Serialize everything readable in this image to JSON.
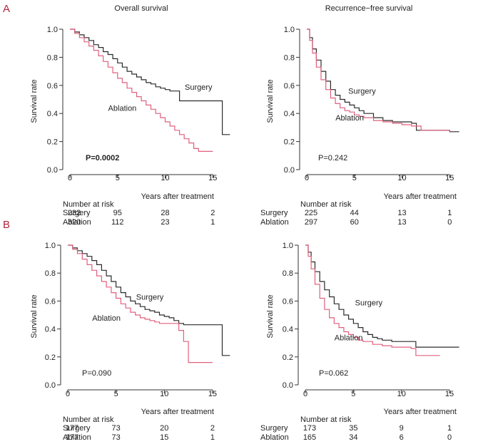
{
  "figure": {
    "panel_labels": [
      "A",
      "B"
    ],
    "colors": {
      "surgery": "#2b2b2b",
      "ablation": "#e0607e",
      "panel_label": "#b0243a",
      "axis": "#333333"
    }
  },
  "chart_data": [
    {
      "type": "line",
      "panel": "A",
      "title": "Overall survival",
      "ylabel": "Survival rate",
      "xlabel": "Years after treatment",
      "xlim": [
        0,
        17
      ],
      "ylim": [
        0,
        1.0
      ],
      "xticks": [
        0,
        5,
        10,
        15
      ],
      "yticks": [
        0.0,
        0.2,
        0.4,
        0.6,
        0.8,
        1.0
      ],
      "p_value": "P=0.0002",
      "p_bold": true,
      "series": [
        {
          "name": "Surgery",
          "label_at": [
            13.5,
            0.59
          ],
          "x": [
            0,
            0.5,
            1,
            1.5,
            2,
            2.5,
            3,
            3.5,
            4,
            4.5,
            5,
            5.5,
            6,
            6.5,
            7,
            7.5,
            8,
            8.5,
            9,
            9.5,
            10,
            10.5,
            11,
            11.5,
            12,
            13,
            14,
            15,
            16,
            16.8
          ],
          "y": [
            1.0,
            0.98,
            0.96,
            0.94,
            0.92,
            0.89,
            0.87,
            0.84,
            0.82,
            0.79,
            0.76,
            0.73,
            0.7,
            0.68,
            0.66,
            0.64,
            0.62,
            0.61,
            0.59,
            0.58,
            0.57,
            0.56,
            0.56,
            0.49,
            0.49,
            0.49,
            0.49,
            0.49,
            0.25,
            0.25
          ]
        },
        {
          "name": "Ablation",
          "label_at": [
            5.5,
            0.44
          ],
          "x": [
            0,
            0.5,
            1,
            1.5,
            2,
            2.5,
            3,
            3.5,
            4,
            4.5,
            5,
            5.5,
            6,
            6.5,
            7,
            7.5,
            8,
            8.5,
            9,
            9.5,
            10,
            10.5,
            11,
            11.5,
            12,
            12.5,
            13,
            13.5,
            14,
            15
          ],
          "y": [
            1.0,
            0.97,
            0.94,
            0.91,
            0.88,
            0.85,
            0.81,
            0.77,
            0.73,
            0.69,
            0.65,
            0.62,
            0.58,
            0.55,
            0.52,
            0.49,
            0.46,
            0.43,
            0.4,
            0.37,
            0.34,
            0.31,
            0.28,
            0.25,
            0.22,
            0.19,
            0.15,
            0.13,
            0.13,
            0.13
          ]
        }
      ],
      "risk_table": {
        "header": "Number at risk",
        "times": [
          0,
          5,
          10,
          15
        ],
        "rows": [
          {
            "label": "Surgery",
            "values": [
              "232",
              "95",
              "28",
              "2"
            ]
          },
          {
            "label": "Ablation",
            "values": [
              "320",
              "112",
              "23",
              "1"
            ]
          }
        ]
      }
    },
    {
      "type": "line",
      "panel": "A",
      "title": "Recurrence−free survival",
      "ylabel": "Survival rate",
      "xlabel": "Years after treatment",
      "xlim": [
        0,
        17
      ],
      "ylim": [
        0,
        1.0
      ],
      "xticks": [
        0,
        5,
        10,
        15
      ],
      "yticks": [
        0.0,
        0.2,
        0.4,
        0.6,
        0.8,
        1.0
      ],
      "p_value": "P=0.242",
      "p_bold": false,
      "series": [
        {
          "name": "Surgery",
          "label_at": [
            5.8,
            0.56
          ],
          "x": [
            0,
            0.3,
            0.6,
            1,
            1.5,
            2,
            2.5,
            3,
            3.5,
            4,
            4.5,
            5,
            5.5,
            6,
            7,
            8,
            9,
            10,
            11,
            11.5,
            12,
            13,
            14,
            15,
            16
          ],
          "y": [
            1.0,
            0.94,
            0.86,
            0.78,
            0.7,
            0.63,
            0.57,
            0.53,
            0.5,
            0.48,
            0.46,
            0.44,
            0.42,
            0.4,
            0.37,
            0.35,
            0.34,
            0.34,
            0.33,
            0.28,
            0.28,
            0.28,
            0.28,
            0.27,
            0.27
          ]
        },
        {
          "name": "Ablation",
          "label_at": [
            4.5,
            0.37
          ],
          "x": [
            0,
            0.3,
            0.6,
            1,
            1.5,
            2,
            2.5,
            3,
            3.5,
            4,
            4.5,
            5,
            5.5,
            6,
            7,
            8,
            9,
            10,
            11,
            12,
            13,
            14,
            15
          ],
          "y": [
            1.0,
            0.92,
            0.83,
            0.73,
            0.64,
            0.57,
            0.51,
            0.47,
            0.44,
            0.42,
            0.41,
            0.39,
            0.38,
            0.37,
            0.35,
            0.34,
            0.33,
            0.32,
            0.31,
            0.28,
            0.28,
            0.28,
            0.27
          ]
        }
      ],
      "risk_table": {
        "header": "Number at risk",
        "times": [
          0,
          5,
          10,
          15
        ],
        "rows": [
          {
            "label": "Surgery",
            "values": [
              "225",
              "44",
              "13",
              "1"
            ]
          },
          {
            "label": "Ablation",
            "values": [
              "297",
              "60",
              "13",
              "0"
            ]
          }
        ]
      }
    },
    {
      "type": "line",
      "panel": "B",
      "title": "",
      "ylabel": "Survival rate",
      "xlabel": "Years after treatment",
      "xlim": [
        0,
        17
      ],
      "ylim": [
        0,
        1.0
      ],
      "xticks": [
        0,
        5,
        10,
        15
      ],
      "yticks": [
        0.0,
        0.2,
        0.4,
        0.6,
        0.8,
        1.0
      ],
      "p_value": "P=0.090",
      "p_bold": false,
      "series": [
        {
          "name": "Surgery",
          "label_at": [
            8.5,
            0.63
          ],
          "x": [
            0,
            0.5,
            1,
            1.5,
            2,
            2.5,
            3,
            3.5,
            4,
            4.5,
            5,
            5.5,
            6,
            6.5,
            7,
            7.5,
            8,
            8.5,
            9,
            9.5,
            10,
            10.5,
            11,
            11.5,
            12,
            13,
            14,
            15,
            16,
            16.8
          ],
          "y": [
            1.0,
            0.98,
            0.96,
            0.94,
            0.92,
            0.89,
            0.86,
            0.82,
            0.78,
            0.74,
            0.7,
            0.66,
            0.63,
            0.6,
            0.58,
            0.56,
            0.54,
            0.53,
            0.52,
            0.5,
            0.49,
            0.48,
            0.46,
            0.44,
            0.43,
            0.43,
            0.43,
            0.43,
            0.21,
            0.21
          ]
        },
        {
          "name": "Ablation",
          "label_at": [
            4.0,
            0.48
          ],
          "x": [
            0,
            0.5,
            1,
            1.5,
            2,
            2.5,
            3,
            3.5,
            4,
            4.5,
            5,
            5.5,
            6,
            6.5,
            7,
            7.5,
            8,
            8.5,
            9,
            9.5,
            10,
            10.5,
            11,
            11.5,
            12,
            12.5,
            13,
            14,
            15
          ],
          "y": [
            1.0,
            0.97,
            0.94,
            0.9,
            0.86,
            0.82,
            0.78,
            0.74,
            0.7,
            0.66,
            0.62,
            0.58,
            0.55,
            0.52,
            0.5,
            0.48,
            0.47,
            0.46,
            0.45,
            0.44,
            0.44,
            0.44,
            0.44,
            0.39,
            0.31,
            0.16,
            0.16,
            0.16,
            0.16
          ]
        }
      ],
      "risk_table": {
        "header": "Number at risk",
        "times": [
          0,
          5,
          10,
          15
        ],
        "rows": [
          {
            "label": "Surgery",
            "values": [
              "177",
              "73",
              "20",
              "2"
            ]
          },
          {
            "label": "Ablation",
            "values": [
              "177",
              "73",
              "15",
              "1"
            ]
          }
        ]
      }
    },
    {
      "type": "line",
      "panel": "B",
      "title": "",
      "ylabel": "Survival rate",
      "xlabel": "Years after treatment",
      "xlim": [
        0,
        17
      ],
      "ylim": [
        0,
        1.0
      ],
      "xticks": [
        0,
        5,
        10,
        15
      ],
      "yticks": [
        0.0,
        0.2,
        0.4,
        0.6,
        0.8,
        1.0
      ],
      "p_value": "P=0.062",
      "p_bold": false,
      "series": [
        {
          "name": "Surgery",
          "label_at": [
            6.6,
            0.59
          ],
          "x": [
            0,
            0.3,
            0.6,
            1,
            1.5,
            2,
            2.5,
            3,
            3.5,
            4,
            4.5,
            5,
            5.5,
            6,
            6.5,
            7,
            7.5,
            8,
            9,
            10,
            11,
            11.5,
            12,
            13,
            14,
            15,
            16
          ],
          "y": [
            1.0,
            0.95,
            0.88,
            0.81,
            0.74,
            0.68,
            0.63,
            0.58,
            0.54,
            0.5,
            0.47,
            0.44,
            0.41,
            0.38,
            0.36,
            0.34,
            0.33,
            0.32,
            0.31,
            0.31,
            0.31,
            0.27,
            0.27,
            0.27,
            0.27,
            0.27,
            0.27
          ]
        },
        {
          "name": "Ablation",
          "label_at": [
            4.5,
            0.34
          ],
          "x": [
            0,
            0.3,
            0.6,
            1,
            1.5,
            2,
            2.5,
            3,
            3.5,
            4,
            4.5,
            5,
            5.5,
            6,
            7,
            8,
            9,
            10,
            11,
            11.5,
            12,
            13,
            14
          ],
          "y": [
            1.0,
            0.92,
            0.83,
            0.72,
            0.62,
            0.54,
            0.48,
            0.44,
            0.41,
            0.38,
            0.36,
            0.34,
            0.32,
            0.31,
            0.29,
            0.28,
            0.27,
            0.27,
            0.26,
            0.21,
            0.21,
            0.21,
            0.21
          ]
        }
      ],
      "risk_table": {
        "header": "Number at risk",
        "times": [
          0,
          5,
          10,
          15
        ],
        "rows": [
          {
            "label": "Surgery",
            "values": [
              "173",
              "35",
              "9",
              "1"
            ]
          },
          {
            "label": "Ablation",
            "values": [
              "165",
              "34",
              "6",
              "0"
            ]
          }
        ]
      }
    }
  ]
}
